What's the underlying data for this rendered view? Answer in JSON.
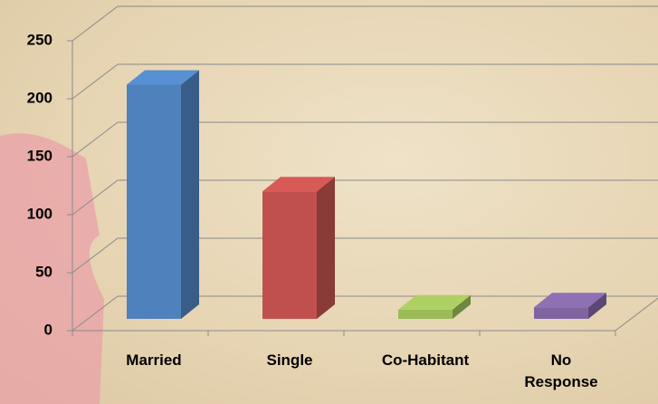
{
  "chart_data": {
    "type": "bar3d",
    "categories": [
      "Married",
      "Single",
      "Co-Habitant",
      "No\nResponse"
    ],
    "values": [
      202,
      110,
      8,
      10
    ],
    "colors": [
      "#4f81bd",
      "#c0504d",
      "#9bbb59",
      "#8064a2"
    ],
    "ylim": [
      0,
      250
    ],
    "yticks": [
      0,
      50,
      100,
      150,
      200,
      250
    ],
    "grid": true
  }
}
